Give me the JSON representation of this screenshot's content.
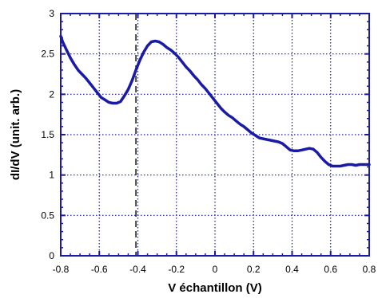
{
  "chart_data": {
    "type": "line",
    "title": "",
    "xlabel": "V échantillon (V)",
    "ylabel": "dI/dV (unit. arb.)",
    "xlim": [
      -0.8,
      0.8
    ],
    "ylim": [
      0,
      3
    ],
    "x_ticks": [
      "-0.8",
      "-0.6",
      "-0.4",
      "-0.2",
      "0",
      "0.2",
      "0.4",
      "0.6",
      "0.8"
    ],
    "y_ticks": [
      "0",
      "0.5",
      "1",
      "1.5",
      "2",
      "2.5",
      "3"
    ],
    "grid": true,
    "grid_style": "dotted",
    "series_color": "#1a1aa8",
    "reference_line": {
      "orientation": "vertical",
      "x": -0.41,
      "style": "dashed",
      "color": "#222222"
    },
    "series": [
      {
        "x": [
          -0.8,
          -0.79,
          -0.77,
          -0.75,
          -0.73,
          -0.71,
          -0.69,
          -0.67,
          -0.65,
          -0.63,
          -0.61,
          -0.59,
          -0.57,
          -0.55,
          -0.53,
          -0.51,
          -0.49,
          -0.47,
          -0.45,
          -0.43,
          -0.41,
          -0.39,
          -0.37,
          -0.35,
          -0.33,
          -0.31,
          -0.29,
          -0.27,
          -0.25,
          -0.23,
          -0.21,
          -0.19,
          -0.17,
          -0.15,
          -0.13,
          -0.11,
          -0.09,
          -0.07,
          -0.05,
          -0.03,
          -0.01,
          0.01,
          0.03,
          0.05,
          0.07,
          0.09,
          0.11,
          0.13,
          0.15,
          0.17,
          0.19,
          0.21,
          0.23,
          0.25,
          0.27,
          0.29,
          0.31,
          0.33,
          0.35,
          0.37,
          0.39,
          0.41,
          0.43,
          0.45,
          0.47,
          0.49,
          0.51,
          0.53,
          0.55,
          0.57,
          0.59,
          0.61,
          0.63,
          0.65,
          0.67,
          0.69,
          0.71,
          0.73,
          0.75,
          0.77,
          0.79,
          0.8
        ],
        "y": [
          2.72,
          2.65,
          2.55,
          2.45,
          2.37,
          2.3,
          2.25,
          2.2,
          2.14,
          2.08,
          2.02,
          1.96,
          1.93,
          1.9,
          1.89,
          1.89,
          1.91,
          1.98,
          2.06,
          2.17,
          2.3,
          2.42,
          2.52,
          2.6,
          2.65,
          2.66,
          2.65,
          2.62,
          2.58,
          2.55,
          2.51,
          2.46,
          2.4,
          2.34,
          2.29,
          2.23,
          2.18,
          2.12,
          2.07,
          2.01,
          1.95,
          1.89,
          1.83,
          1.78,
          1.74,
          1.71,
          1.67,
          1.63,
          1.6,
          1.56,
          1.52,
          1.49,
          1.46,
          1.45,
          1.44,
          1.43,
          1.42,
          1.41,
          1.39,
          1.35,
          1.31,
          1.3,
          1.3,
          1.31,
          1.32,
          1.33,
          1.32,
          1.28,
          1.22,
          1.17,
          1.13,
          1.11,
          1.11,
          1.11,
          1.12,
          1.13,
          1.13,
          1.12,
          1.13,
          1.13,
          1.13,
          1.13
        ]
      }
    ]
  }
}
